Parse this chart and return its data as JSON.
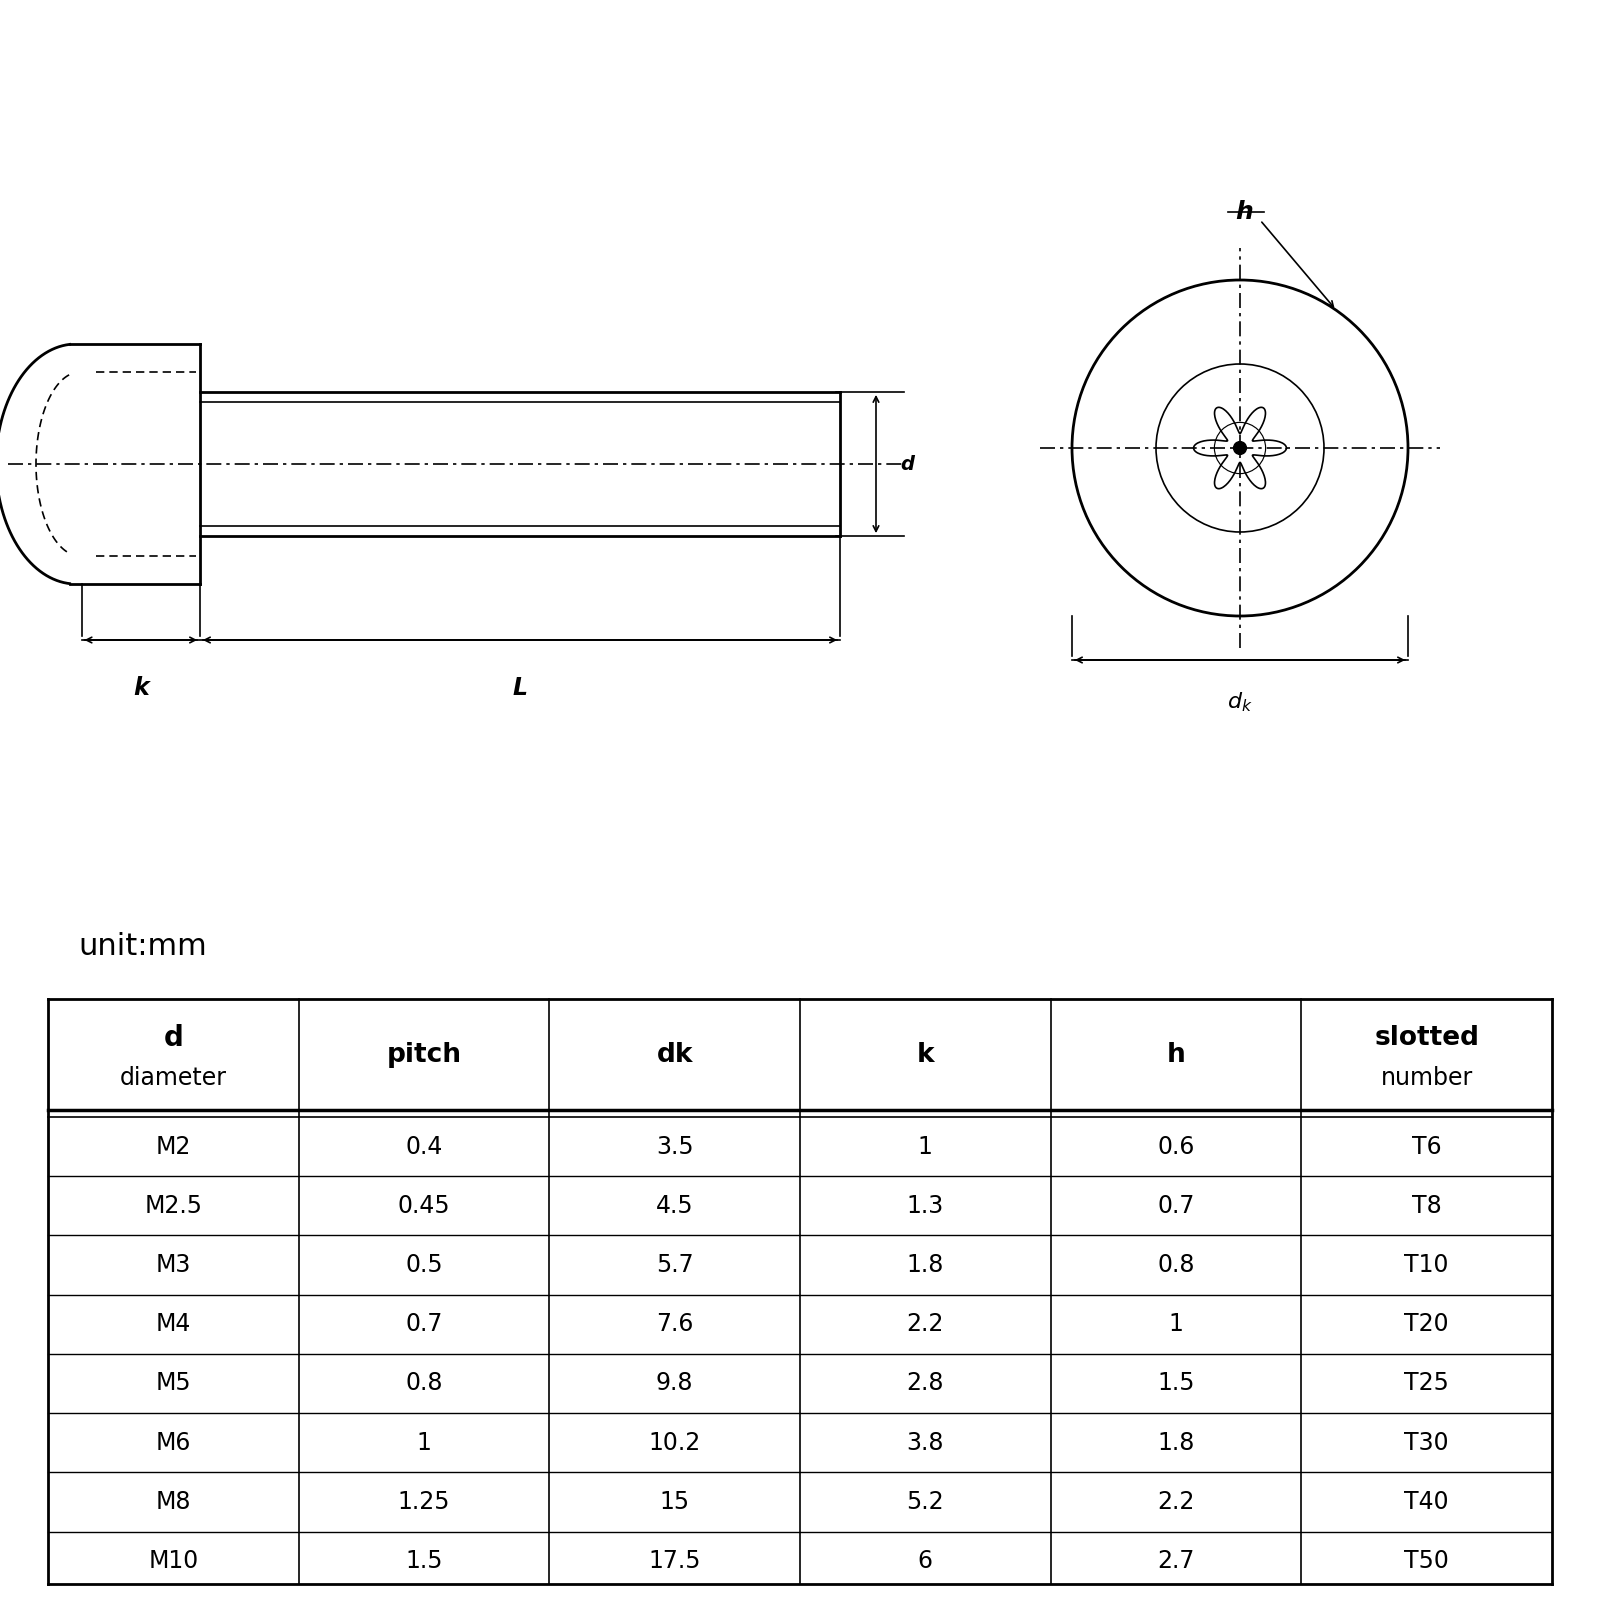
{
  "unit_label": "unit:mm",
  "table_data": [
    [
      "M2",
      "0.4",
      "3.5",
      "1",
      "0.6",
      "T6"
    ],
    [
      "M2.5",
      "0.45",
      "4.5",
      "1.3",
      "0.7",
      "T8"
    ],
    [
      "M3",
      "0.5",
      "5.7",
      "1.8",
      "0.8",
      "T10"
    ],
    [
      "M4",
      "0.7",
      "7.6",
      "2.2",
      "1",
      "T20"
    ],
    [
      "M5",
      "0.8",
      "9.8",
      "2.8",
      "1.5",
      "T25"
    ],
    [
      "M6",
      "1",
      "10.2",
      "3.8",
      "1.8",
      "T30"
    ],
    [
      "M8",
      "1.25",
      "15",
      "5.2",
      "2.2",
      "T40"
    ],
    [
      "M10",
      "1.5",
      "17.5",
      "6",
      "2.7",
      "T50"
    ]
  ],
  "bg_color": "#ffffff",
  "lw_main": 2.0,
  "lw_thin": 1.2,
  "lw_dim": 1.2
}
